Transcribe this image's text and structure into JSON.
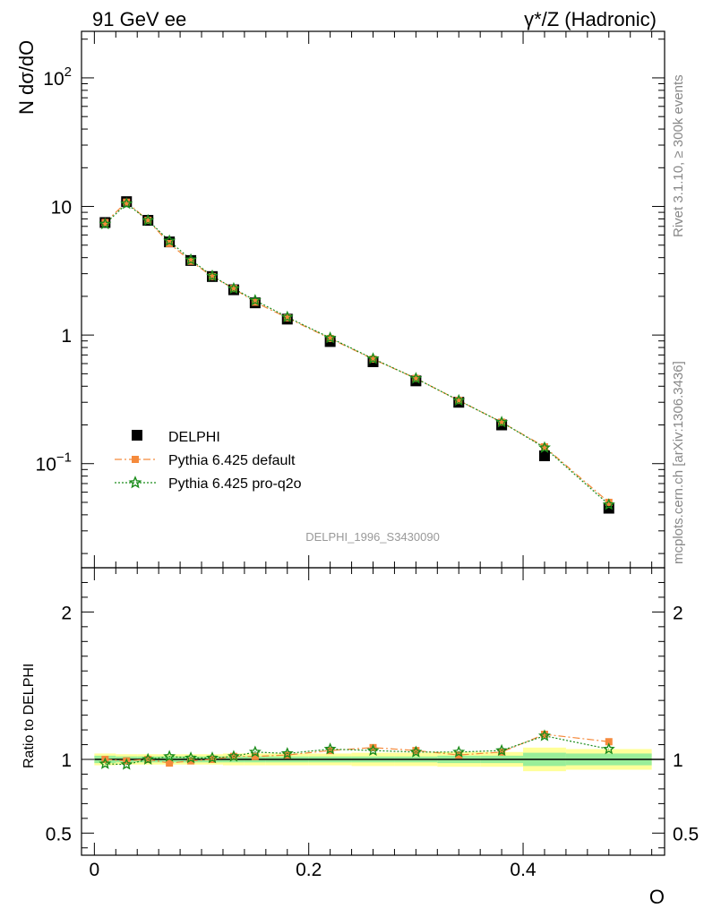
{
  "header": {
    "left_title": "91 GeV ee",
    "right_title": "γ*/Z (Hadronic)"
  },
  "side_text": {
    "rivet": "Rivet 3.1.10, ≥ 300k events",
    "mcplots": "mcplots.cern.ch [arXiv:1306.3436]"
  },
  "watermark": "DELPHI_1996_S3430090",
  "chart_data": [
    {
      "type": "scatter",
      "panel": "main",
      "title": "",
      "ylabel": "N dσ/dO",
      "xlabel": "O",
      "yscale": "log",
      "xlim": [
        -0.012,
        0.532
      ],
      "ylim": [
        0.0155,
        230
      ],
      "y_ticks": [
        {
          "value": 0.1,
          "label": "10",
          "exp": "−1"
        },
        {
          "value": 1,
          "label": "1",
          "exp": ""
        },
        {
          "value": 10,
          "label": "10",
          "exp": ""
        },
        {
          "value": 100,
          "label": "10",
          "exp": "2"
        }
      ],
      "legend_position": "lower-left",
      "x": [
        0.01,
        0.03,
        0.05,
        0.07,
        0.09,
        0.11,
        0.13,
        0.15,
        0.18,
        0.22,
        0.26,
        0.3,
        0.34,
        0.38,
        0.42,
        0.48
      ],
      "series": [
        {
          "name": "DELPHI",
          "color": "#000000",
          "marker": "square",
          "values": [
            7.5,
            10.9,
            7.8,
            5.3,
            3.8,
            2.85,
            2.25,
            1.78,
            1.33,
            0.89,
            0.62,
            0.44,
            0.3,
            0.2,
            0.115,
            0.045
          ]
        },
        {
          "name": "Pythia 6.425 default",
          "color": "#f58a3c",
          "marker": "square-small",
          "line": "dashdot",
          "values": [
            7.5,
            10.8,
            7.8,
            5.15,
            3.75,
            2.85,
            2.3,
            1.8,
            1.36,
            0.94,
            0.65,
            0.46,
            0.31,
            0.21,
            0.135,
            0.05
          ]
        },
        {
          "name": "Pythia 6.425 pro-q2o",
          "color": "#1a8c1a",
          "marker": "star",
          "line": "dotted",
          "values": [
            7.3,
            10.5,
            7.8,
            5.4,
            3.85,
            2.88,
            2.3,
            1.86,
            1.38,
            0.95,
            0.655,
            0.46,
            0.31,
            0.21,
            0.133,
            0.048
          ]
        }
      ]
    },
    {
      "type": "line",
      "panel": "ratio",
      "ylabel": "Ratio to DELPHI",
      "xlabel": "O",
      "xlim": [
        -0.012,
        0.532
      ],
      "ylim": [
        0.35,
        2.3
      ],
      "y_ticks": [
        0.5,
        1,
        2
      ],
      "x_ticks": [
        0,
        0.2,
        0.4
      ],
      "x": [
        0.01,
        0.03,
        0.05,
        0.07,
        0.09,
        0.11,
        0.13,
        0.15,
        0.18,
        0.22,
        0.26,
        0.3,
        0.34,
        0.38,
        0.42,
        0.48
      ],
      "bins": [
        [
          0,
          0.02
        ],
        [
          0.02,
          0.04
        ],
        [
          0.04,
          0.06
        ],
        [
          0.06,
          0.08
        ],
        [
          0.08,
          0.1
        ],
        [
          0.1,
          0.12
        ],
        [
          0.12,
          0.14
        ],
        [
          0.14,
          0.16
        ],
        [
          0.16,
          0.2
        ],
        [
          0.2,
          0.24
        ],
        [
          0.24,
          0.28
        ],
        [
          0.28,
          0.32
        ],
        [
          0.32,
          0.36
        ],
        [
          0.36,
          0.4
        ],
        [
          0.4,
          0.44
        ],
        [
          0.44,
          0.52
        ]
      ],
      "band_inner": [
        0.025,
        0.02,
        0.02,
        0.02,
        0.02,
        0.02,
        0.02,
        0.02,
        0.02,
        0.02,
        0.02,
        0.02,
        0.025,
        0.025,
        0.045,
        0.04
      ],
      "band_outer": [
        0.04,
        0.035,
        0.035,
        0.035,
        0.035,
        0.035,
        0.04,
        0.04,
        0.04,
        0.04,
        0.045,
        0.045,
        0.05,
        0.05,
        0.08,
        0.07
      ],
      "series": [
        {
          "name": "Pythia 6.425 default",
          "color": "#f58a3c",
          "values": [
            1.0,
            0.99,
            1.0,
            0.975,
            0.99,
            1.0,
            1.02,
            1.02,
            1.03,
            1.06,
            1.08,
            1.06,
            1.03,
            1.05,
            1.17,
            1.12
          ]
        },
        {
          "name": "Pythia 6.425 pro-q2o",
          "color": "#1a8c1a",
          "values": [
            0.97,
            0.965,
            1.0,
            1.02,
            1.01,
            1.01,
            1.02,
            1.05,
            1.04,
            1.07,
            1.06,
            1.05,
            1.05,
            1.06,
            1.16,
            1.07
          ]
        }
      ]
    }
  ]
}
